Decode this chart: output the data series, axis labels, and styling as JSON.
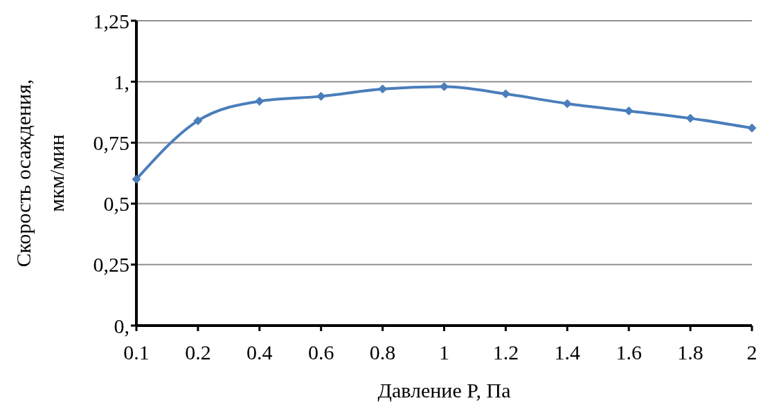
{
  "chart_data": {
    "type": "line",
    "xlabel": "Давление P, Па",
    "ylabel": "Скорость осаждения,\nмкм/мин",
    "categories": [
      "0.1",
      "0.2",
      "0.4",
      "0.6",
      "0.8",
      "1",
      "1.2",
      "1.4",
      "1.6",
      "1.8",
      "2"
    ],
    "series": [
      {
        "color": "#4a7ebb",
        "values": [
          0.6,
          0.84,
          0.92,
          0.94,
          0.97,
          0.98,
          0.95,
          0.91,
          0.88,
          0.85,
          0.81
        ]
      }
    ],
    "ylim": [
      0,
      1.25
    ],
    "yticks": [
      {
        "value": 0,
        "label": "0,"
      },
      {
        "value": 0.25,
        "label": "0,25"
      },
      {
        "value": 0.5,
        "label": "0,5"
      },
      {
        "value": 0.75,
        "label": "0,75"
      },
      {
        "value": 1,
        "label": "1,"
      },
      {
        "value": 1.25,
        "label": "1,25"
      }
    ],
    "grid": "y",
    "legend": false,
    "marker": "diamond",
    "line_style": "solid"
  }
}
